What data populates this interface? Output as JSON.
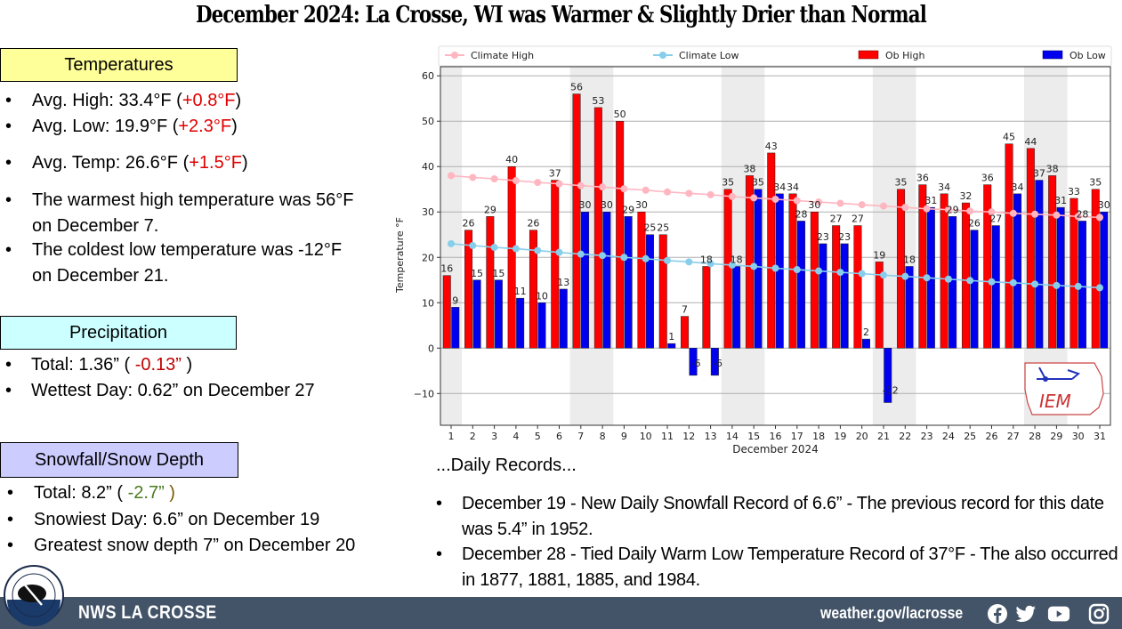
{
  "title": "December 2024:  La Crosse, WI was Warmer & Slightly Drier than Normal",
  "temperatures": {
    "heading": "Temperatures",
    "items": [
      {
        "label": "Avg. High:  33.4°F (",
        "delta": "+0.8°F",
        "end": ")"
      },
      {
        "label": "Avg. Low:  19.9°F (",
        "delta": "+2.3°F",
        "end": ")"
      },
      {
        "label": "Avg. Temp:  26.6°F (",
        "delta": "+1.5°F",
        "end": ")"
      }
    ],
    "extremes": [
      {
        "line1": "The warmest high temperature was 56°F",
        "line2": "on December 7."
      },
      {
        "line1": "The coldest low temperature was -12°F",
        "line2": "on December 21."
      }
    ]
  },
  "precipitation": {
    "heading": "Precipitation",
    "total_label": "Total:  1.36” ( ",
    "total_delta": "-0.13”",
    "total_end": " )",
    "wettest": "Wettest Day:  0.62” on December 27"
  },
  "snowfall": {
    "heading": "Snowfall/Snow Depth",
    "total_label": "Total:  8.2” ( ",
    "total_delta": "-2.7”",
    "total_end": " )",
    "snowiest": "Snowiest Day:  6.6” on December 19",
    "depth": "Greatest snow depth 7” on December 20"
  },
  "records": {
    "heading": "...Daily Records...",
    "items": [
      "December 19 - New Daily Snowfall Record of 6.6” - The previous record for this date was 5.4” in 1952.",
      "December 28 - Tied Daily Warm Low Temperature Record of 37°F - The also occurred in 1877, 1881, 1885, and 1984."
    ]
  },
  "footer": {
    "name": "NWS LA CROSSE",
    "url": "weather.gov/lacrosse",
    "logo_text_top": "NATIONAL WEATHER SERVICE",
    "logo_text_bottom": "LA CROSSE, WI",
    "social": [
      "facebook-icon",
      "twitter-icon",
      "youtube-icon",
      "instagram-icon"
    ]
  },
  "iem_logo_text": "IEM",
  "chart_data": {
    "type": "bar",
    "title": "",
    "xlabel": "December 2024",
    "ylabel": "Temperature °F",
    "ylim": [
      -17,
      62
    ],
    "yticks": [
      -10,
      0,
      10,
      20,
      30,
      40,
      50,
      60
    ],
    "grid": true,
    "legend_position": "top",
    "categories": [
      "1",
      "2",
      "3",
      "4",
      "5",
      "6",
      "7",
      "8",
      "9",
      "10",
      "11",
      "12",
      "13",
      "14",
      "15",
      "16",
      "17",
      "18",
      "19",
      "20",
      "21",
      "22",
      "23",
      "24",
      "25",
      "26",
      "27",
      "28",
      "29",
      "30",
      "31"
    ],
    "shaded_days": [
      [
        1,
        1
      ],
      [
        7,
        8
      ],
      [
        14,
        15
      ],
      [
        21,
        22
      ],
      [
        28,
        29
      ]
    ],
    "series": [
      {
        "name": "Ob High",
        "type": "bar",
        "color": "#ff0000",
        "values": [
          16,
          26,
          29,
          40,
          26,
          37,
          56,
          53,
          50,
          30,
          25,
          7,
          18,
          35,
          38,
          43,
          34,
          30,
          27,
          27,
          19,
          35,
          36,
          34,
          32,
          36,
          45,
          44,
          38,
          33,
          35
        ]
      },
      {
        "name": "Ob Low",
        "type": "bar",
        "color": "#0000ee",
        "values": [
          9,
          15,
          15,
          11,
          10,
          13,
          30,
          30,
          29,
          25,
          1,
          -6,
          -6,
          18,
          35,
          34,
          28,
          23,
          23,
          2,
          -12,
          18,
          31,
          29,
          26,
          27,
          34,
          37,
          31,
          28,
          30
        ]
      },
      {
        "name": "Climate High",
        "type": "line",
        "color": "#ffb6c1",
        "values": [
          38.0,
          37.6,
          37.3,
          36.9,
          36.5,
          36.2,
          35.8,
          35.5,
          35.1,
          34.8,
          34.4,
          34.1,
          33.8,
          33.4,
          33.1,
          32.8,
          32.5,
          32.2,
          31.9,
          31.6,
          31.3,
          31.0,
          30.7,
          30.5,
          30.2,
          30.0,
          29.7,
          29.5,
          29.3,
          29.0,
          28.8
        ]
      },
      {
        "name": "Climate Low",
        "type": "line",
        "color": "#87ceeb",
        "values": [
          23.0,
          22.6,
          22.2,
          21.9,
          21.5,
          21.1,
          20.7,
          20.4,
          20.0,
          19.7,
          19.3,
          19.0,
          18.6,
          18.3,
          18.0,
          17.6,
          17.3,
          17.0,
          16.7,
          16.4,
          16.1,
          15.8,
          15.5,
          15.2,
          14.9,
          14.6,
          14.4,
          14.1,
          13.8,
          13.6,
          13.3
        ]
      }
    ]
  }
}
